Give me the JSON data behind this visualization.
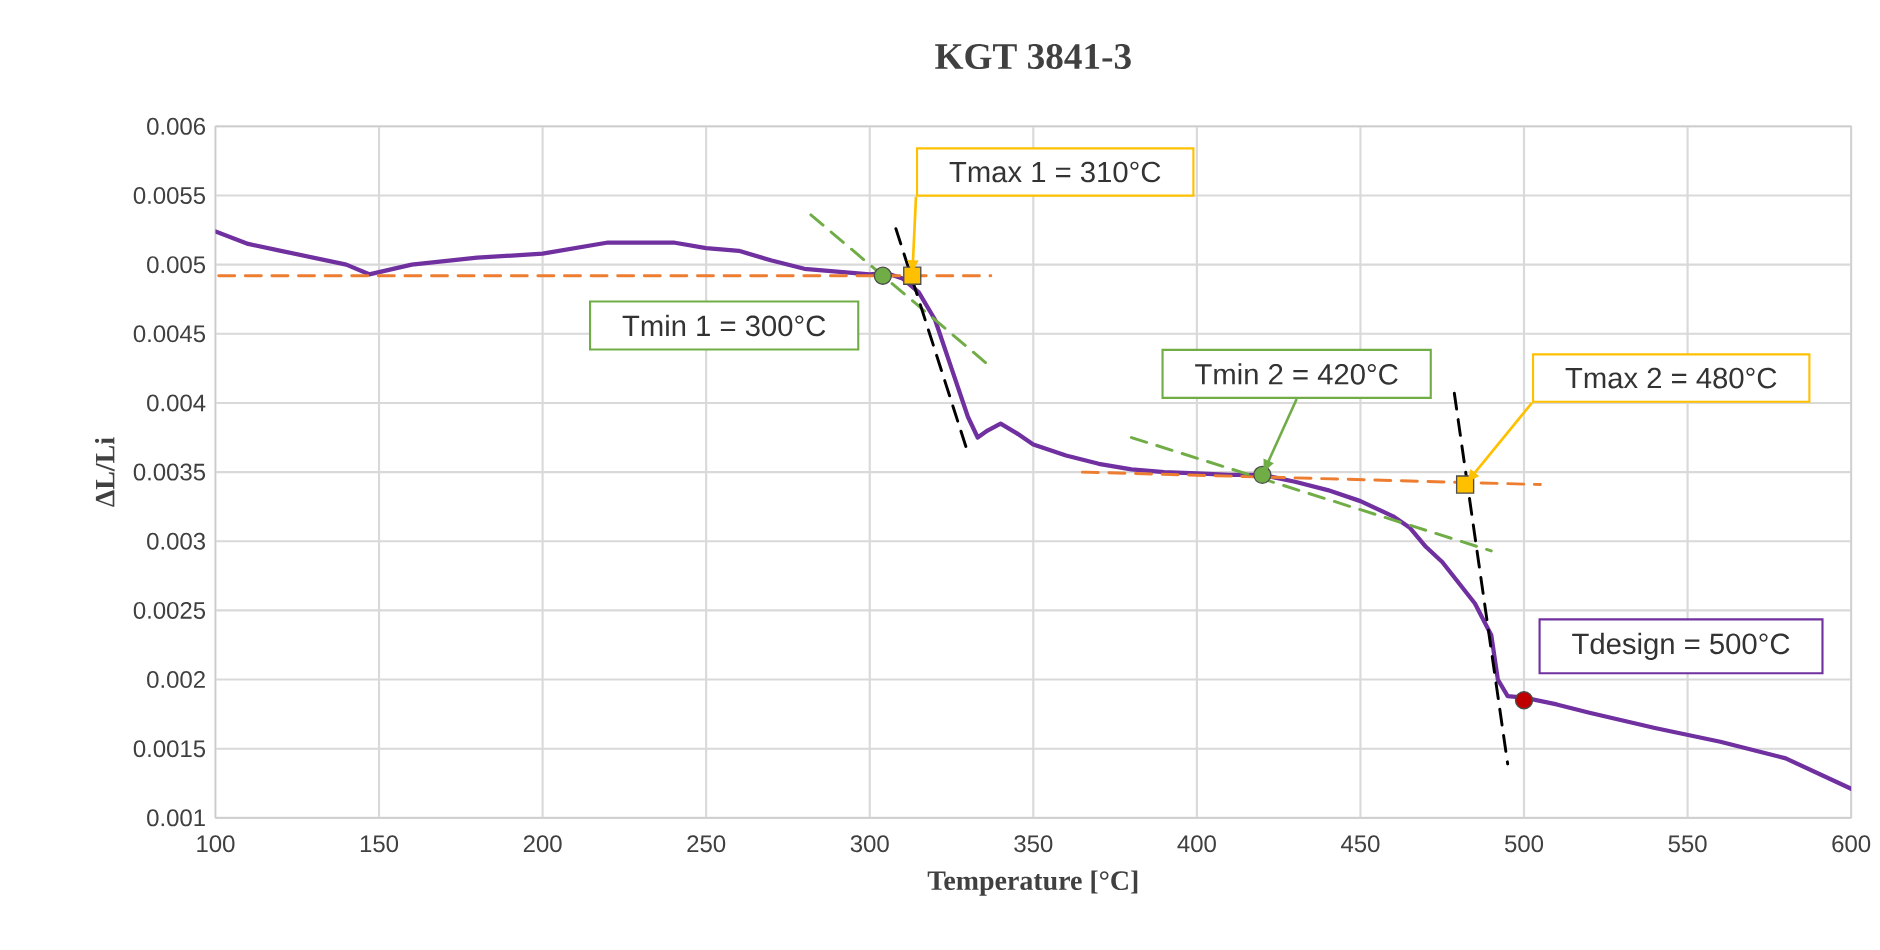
{
  "chart_data": {
    "type": "line",
    "title": "KGT 3841-3",
    "xlabel": "Temperature [°C]",
    "ylabel": "ΔL/Li",
    "xlim": [
      100,
      600
    ],
    "ylim": [
      0.001,
      0.006
    ],
    "xticks": [
      100,
      150,
      200,
      250,
      300,
      350,
      400,
      450,
      500,
      550,
      600
    ],
    "yticks": [
      0.001,
      0.0015,
      0.002,
      0.0025,
      0.003,
      0.0035,
      0.004,
      0.0045,
      0.005,
      0.0055,
      0.006
    ],
    "grid": true,
    "series": [
      {
        "type": "line",
        "color": "#7030a0",
        "line_style": "solid",
        "x": [
          100,
          110,
          120,
          130,
          140,
          147,
          160,
          180,
          200,
          220,
          240,
          250,
          260,
          270,
          280,
          290,
          300,
          305,
          310,
          315,
          320,
          325,
          330,
          333,
          336,
          340,
          345,
          350,
          360,
          370,
          380,
          390,
          400,
          410,
          420,
          430,
          440,
          450,
          460,
          465,
          470,
          475,
          480,
          485,
          490,
          492,
          495,
          500,
          510,
          520,
          540,
          560,
          580,
          600
        ],
        "values": [
          0.00524,
          0.00515,
          0.0051,
          0.00505,
          0.005,
          0.00493,
          0.005,
          0.00505,
          0.00508,
          0.00516,
          0.00516,
          0.00512,
          0.0051,
          0.00503,
          0.00497,
          0.00495,
          0.00493,
          0.00494,
          0.0049,
          0.0048,
          0.0046,
          0.00425,
          0.0039,
          0.00375,
          0.0038,
          0.00385,
          0.00378,
          0.0037,
          0.00362,
          0.00356,
          0.00352,
          0.0035,
          0.00349,
          0.00348,
          0.00348,
          0.00343,
          0.00337,
          0.00329,
          0.00318,
          0.0031,
          0.00296,
          0.00285,
          0.0027,
          0.00255,
          0.00232,
          0.002,
          0.00188,
          0.00187,
          0.00182,
          0.00176,
          0.00165,
          0.00155,
          0.00143,
          0.00121
        ]
      },
      {
        "type": "line",
        "color": "#ed7d31",
        "line_style": "dashed",
        "x": [
          101,
          337
        ],
        "values": [
          0.00492,
          0.00492
        ]
      },
      {
        "type": "line",
        "color": "#70ad47",
        "line_style": "dashed",
        "x": [
          282,
          337
        ],
        "values": [
          0.00536,
          0.00426
        ]
      },
      {
        "type": "line",
        "color": "#000000",
        "line_style": "dashed",
        "x": [
          308,
          330
        ],
        "values": [
          0.00526,
          0.00364
        ]
      },
      {
        "type": "line",
        "color": "#ed7d31",
        "line_style": "dashed",
        "x": [
          365,
          505
        ],
        "values": [
          0.0035,
          0.00341
        ]
      },
      {
        "type": "line",
        "color": "#70ad47",
        "line_style": "dashed",
        "x": [
          380,
          490
        ],
        "values": [
          0.00375,
          0.00293
        ]
      },
      {
        "type": "line",
        "color": "#000000",
        "line_style": "dashed",
        "x": [
          478.7,
          495
        ],
        "values": [
          0.00407,
          0.00139
        ]
      },
      {
        "type": "scatter",
        "color": "#70ad47",
        "marker": "circle",
        "x": [
          304,
          420
        ],
        "values": [
          0.00492,
          0.00348
        ]
      },
      {
        "type": "scatter",
        "color": "#ffc000",
        "marker": "square",
        "x": [
          313,
          482
        ],
        "values": [
          0.00492,
          0.00341
        ]
      },
      {
        "type": "scatter",
        "color": "#c00000",
        "marker": "circle",
        "x": [
          500
        ],
        "values": [
          0.00185
        ]
      }
    ],
    "annotations": [
      "Tmin 1 = 300°C",
      {
        "text": "Tmax 1 = 310°C",
        "x": 313,
        "y": 0.00492
      },
      {
        "text": "Tmin 2 = 420°C",
        "x": 420,
        "y": 0.00348
      },
      {
        "text": "Tmax 2 = 480°C",
        "x": 482,
        "y": 0.00341
      },
      "Tdesign = 500°C"
    ]
  }
}
